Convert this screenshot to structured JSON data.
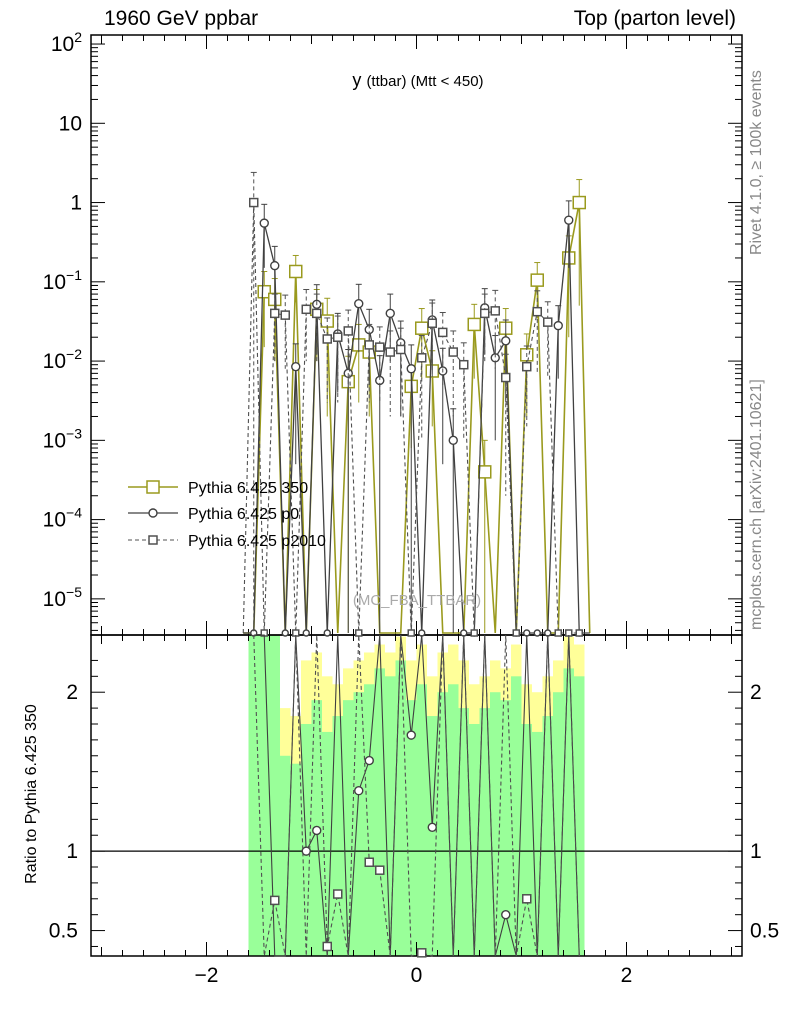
{
  "header": {
    "left": "1960 GeV ppbar",
    "right": "Top (parton level)"
  },
  "side_labels": {
    "rivet": "Rivet 4.1.0, ≥ 100k events",
    "mcplots": "mcplots.cern.ch [arXiv:2401.10621]"
  },
  "colors": {
    "py350": "#9a9a1e",
    "p0": "#404040",
    "p2010": "#505050",
    "band_green": "#99ff99",
    "band_yellow": "#ffff99"
  },
  "chart_data": [
    {
      "type": "line",
      "panel": "main",
      "title": "y (ttbar) (Mtt < 450)",
      "title_main": "y",
      "title_sub": "(ttbar) (Mtt < 450)",
      "watermark": "(MC_FBA_TTBAR)",
      "xlabel": "",
      "ylabel": "",
      "yscale": "log",
      "xlim": [
        -3.1,
        3.1
      ],
      "ylim": [
        3.5e-06,
        130
      ],
      "xticks": [
        -2,
        0,
        2
      ],
      "xtick_labels": [
        "−2",
        "0",
        "2"
      ],
      "yticks": [
        1e-05,
        0.0001,
        0.001,
        0.01,
        0.1,
        1,
        10,
        100
      ],
      "ytick_labels": [
        {
          "base": "10",
          "exp": "−5"
        },
        {
          "base": "10",
          "exp": "−4"
        },
        {
          "base": "10",
          "exp": "−3"
        },
        {
          "base": "10",
          "exp": "−2"
        },
        {
          "base": "10",
          "exp": "−1"
        },
        {
          "base": "1",
          "exp": ""
        },
        {
          "base": "10",
          "exp": ""
        },
        {
          "base": "10",
          "exp": "2"
        }
      ],
      "legend": {
        "placement": "center-left",
        "entries": [
          "Pythia 6.425 350",
          "Pythia 6.425 p0",
          "Pythia 6.425 p2010"
        ]
      },
      "series": [
        {
          "name": "Pythia 6.425 350",
          "style": "solid",
          "marker": "open-square",
          "x": [
            -1.45,
            -1.35,
            -1.15,
            -0.95,
            -0.85,
            -0.65,
            -0.55,
            -0.45,
            -0.05,
            0.05,
            0.15,
            0.55,
            0.65,
            0.85,
            1.05,
            1.15,
            1.45,
            1.55
          ],
          "y": [
            0.075,
            0.06,
            0.135,
            0.045,
            0.032,
            0.0055,
            0.016,
            0.013,
            0.0048,
            0.026,
            0.0075,
            0.029,
            0.0004,
            0.026,
            0.012,
            0.105,
            0.2,
            1.0
          ],
          "yerr": [
            0.06,
            0.05,
            0.08,
            0.035,
            0.03,
            0.006,
            0.013,
            0.011,
            0.004,
            0.02,
            0.006,
            0.023,
            0.0006,
            0.02,
            0.01,
            0.07,
            0.18,
            0.95
          ]
        },
        {
          "name": "Pythia 6.425 p0",
          "style": "solid",
          "marker": "open-circle",
          "x": [
            -1.45,
            -1.35,
            -1.15,
            -0.95,
            -0.75,
            -0.65,
            -0.55,
            -0.45,
            -0.35,
            -0.25,
            -0.15,
            -0.05,
            0.15,
            0.25,
            0.35,
            0.65,
            0.75,
            0.85,
            1.35,
            1.45
          ],
          "y": [
            0.55,
            0.16,
            0.0085,
            0.052,
            0.022,
            0.007,
            0.053,
            0.025,
            0.0057,
            0.04,
            0.017,
            0.008,
            0.033,
            0.0075,
            0.001,
            0.047,
            0.011,
            0.018,
            0.028,
            0.6
          ],
          "yerr": [
            0.4,
            0.12,
            0.008,
            0.04,
            0.018,
            0.007,
            0.04,
            0.02,
            0.006,
            0.03,
            0.015,
            0.008,
            0.026,
            0.007,
            0.0015,
            0.035,
            0.01,
            0.015,
            0.022,
            0.45
          ]
        },
        {
          "name": "Pythia 6.425 p2010",
          "style": "dashed",
          "marker": "open-square-small",
          "x": [
            -1.55,
            -1.35,
            -1.25,
            -1.05,
            -0.95,
            -0.85,
            -0.75,
            -0.65,
            -0.45,
            -0.35,
            -0.25,
            -0.15,
            0.05,
            0.15,
            0.25,
            0.35,
            0.45,
            0.65,
            0.75,
            0.85,
            1.05,
            1.15,
            1.25
          ],
          "y": [
            1.0,
            0.04,
            0.038,
            0.045,
            0.04,
            0.019,
            0.02,
            0.024,
            0.016,
            0.015,
            0.013,
            0.014,
            0.011,
            0.03,
            0.023,
            0.013,
            0.009,
            0.04,
            0.043,
            0.0062,
            0.0085,
            0.042,
            0.031
          ],
          "yerr": [
            1.4,
            0.03,
            0.03,
            0.035,
            0.03,
            0.016,
            0.017,
            0.02,
            0.013,
            0.012,
            0.011,
            0.012,
            0.01,
            0.024,
            0.018,
            0.011,
            0.008,
            0.03,
            0.035,
            0.006,
            0.007,
            0.035,
            0.025
          ]
        }
      ]
    },
    {
      "type": "line",
      "panel": "ratio",
      "ylabel": "Ratio to Pythia 6.425 350",
      "xlim": [
        -3.1,
        3.1
      ],
      "ylim": [
        0.34,
        2.36
      ],
      "yticks": [
        0.5,
        1,
        2
      ],
      "ytick_labels": [
        "0.5",
        "1",
        "2"
      ],
      "reference_line": 1,
      "bands": {
        "x": [
          -1.55,
          -1.45,
          -1.35,
          -1.25,
          -1.15,
          -1.05,
          -0.95,
          -0.85,
          -0.75,
          -0.65,
          -0.55,
          -0.45,
          -0.35,
          -0.25,
          -0.15,
          -0.05,
          0.05,
          0.15,
          0.25,
          0.35,
          0.45,
          0.55,
          0.65,
          0.75,
          0.85,
          0.95,
          1.05,
          1.15,
          1.25,
          1.35,
          1.45,
          1.55
        ],
        "yellow_upper": [
          2.36,
          2.36,
          2.36,
          1.9,
          1.85,
          2.2,
          2.25,
          2.1,
          2.05,
          2.15,
          2.2,
          2.25,
          2.3,
          2.25,
          2.35,
          2.2,
          2.3,
          2.1,
          2.25,
          2.3,
          2.2,
          2.05,
          2.1,
          2.2,
          2.15,
          2.3,
          2.05,
          2.0,
          2.1,
          2.2,
          2.35,
          2.3
        ],
        "green_upper": [
          2.36,
          2.36,
          2.36,
          1.6,
          1.55,
          1.8,
          1.95,
          1.75,
          1.85,
          1.95,
          2.0,
          2.05,
          2.15,
          2.1,
          2.2,
          1.95,
          2.05,
          1.85,
          2.0,
          2.05,
          1.9,
          1.8,
          1.9,
          2.0,
          1.95,
          2.1,
          1.8,
          1.75,
          1.85,
          2.0,
          2.15,
          2.1
        ],
        "green_lower": [
          0.34,
          0.34,
          0.34,
          0.34,
          0.34,
          0.34,
          0.34,
          0.34,
          0.34,
          0.34,
          0.34,
          0.34,
          0.34,
          0.34,
          0.34,
          0.34,
          0.34,
          0.34,
          0.34,
          0.34,
          0.34,
          0.34,
          0.34,
          0.34,
          0.34,
          0.34,
          0.34,
          0.34,
          0.34,
          0.34,
          0.34,
          0.34
        ],
        "yellow_lower": [
          0.34,
          0.34,
          0.34,
          0.34,
          0.34,
          0.34,
          0.34,
          0.34,
          0.34,
          0.34,
          0.34,
          0.34,
          0.34,
          0.34,
          0.34,
          0.34,
          0.34,
          0.34,
          0.34,
          0.34,
          0.34,
          0.34,
          0.34,
          0.34,
          0.34,
          0.34,
          0.34,
          0.34,
          0.34,
          0.34,
          0.34,
          0.34
        ]
      },
      "series": [
        {
          "name": "Pythia 6.425 p0",
          "style": "solid",
          "marker": "open-circle",
          "x": [
            -1.45,
            -1.35,
            -1.05,
            -0.95,
            -0.55,
            -0.45,
            -0.05,
            0.15,
            0.85
          ],
          "y": [
            2.36,
            0.34,
            1.0,
            1.13,
            1.38,
            1.57,
            1.73,
            1.15,
            0.6
          ]
        },
        {
          "name": "Pythia 6.425 p2010",
          "style": "dashed",
          "marker": "open-square-small",
          "x": [
            -1.35,
            -0.85,
            -0.75,
            -0.45,
            -0.35,
            0.05,
            1.05
          ],
          "y": [
            0.69,
            0.4,
            0.73,
            0.93,
            0.88,
            0.36,
            0.7
          ]
        }
      ]
    }
  ]
}
